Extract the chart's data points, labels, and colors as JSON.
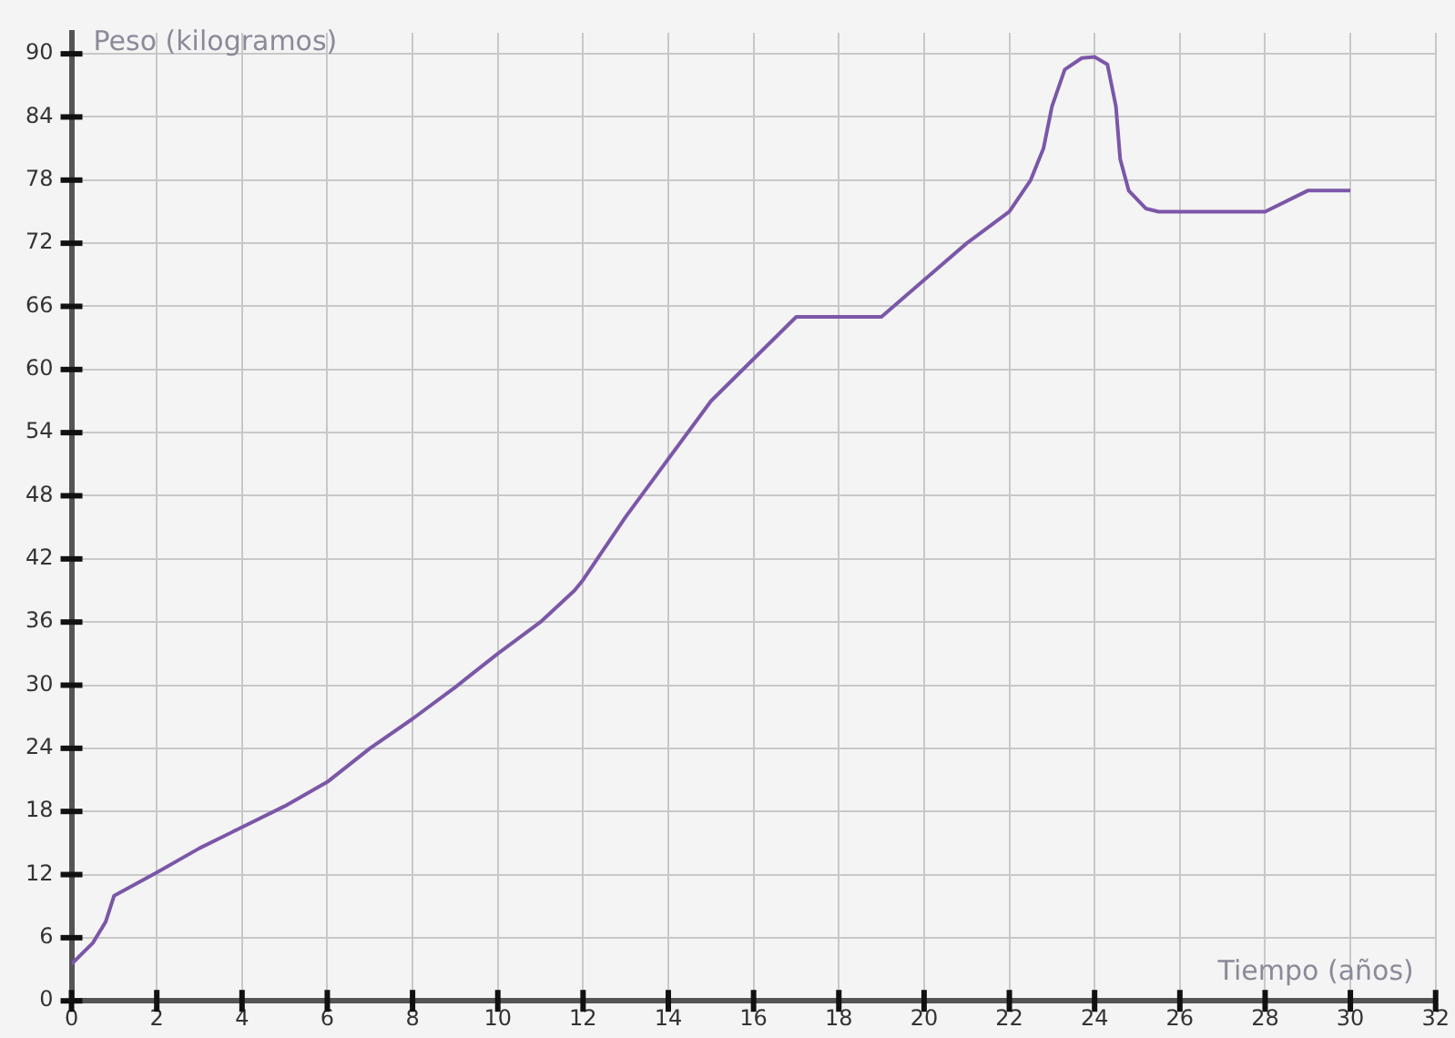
{
  "chart_data": {
    "type": "line",
    "xlabel": "Tiempo (años)",
    "ylabel": "Peso (kilogramos)",
    "x": [
      0,
      0.5,
      0.8,
      1,
      2,
      3,
      4,
      5,
      6,
      7,
      8,
      9,
      10,
      11,
      11.8,
      12,
      13,
      14,
      15,
      16,
      17,
      18,
      19,
      20,
      21,
      22,
      22.5,
      22.8,
      23,
      23.3,
      23.7,
      24,
      24.3,
      24.5,
      24.6,
      24.8,
      25.2,
      25.5,
      26,
      28,
      29,
      30
    ],
    "series": [
      {
        "color": "#7b57a8",
        "values": [
          3.5,
          5.5,
          7.5,
          10,
          12.2,
          14.5,
          16.5,
          18.5,
          20.8,
          24,
          26.8,
          29.8,
          33,
          36,
          39,
          40,
          46,
          51.5,
          57,
          61,
          65,
          65,
          65,
          68.5,
          72,
          75,
          78,
          81,
          85,
          88.5,
          89.6,
          89.7,
          89,
          85,
          80,
          77,
          75.3,
          75,
          75,
          75,
          77,
          77
        ]
      }
    ],
    "xlim": [
      0,
      32
    ],
    "xticks": [
      0,
      2,
      4,
      6,
      8,
      10,
      12,
      14,
      16,
      18,
      20,
      22,
      24,
      26,
      28,
      30,
      32
    ],
    "ylim": [
      0,
      92
    ],
    "yticks": [
      0,
      6,
      12,
      18,
      24,
      30,
      36,
      42,
      48,
      54,
      60,
      66,
      72,
      78,
      84,
      90
    ],
    "grid": true,
    "legend": false,
    "marker": "none",
    "line_style": "solid"
  }
}
